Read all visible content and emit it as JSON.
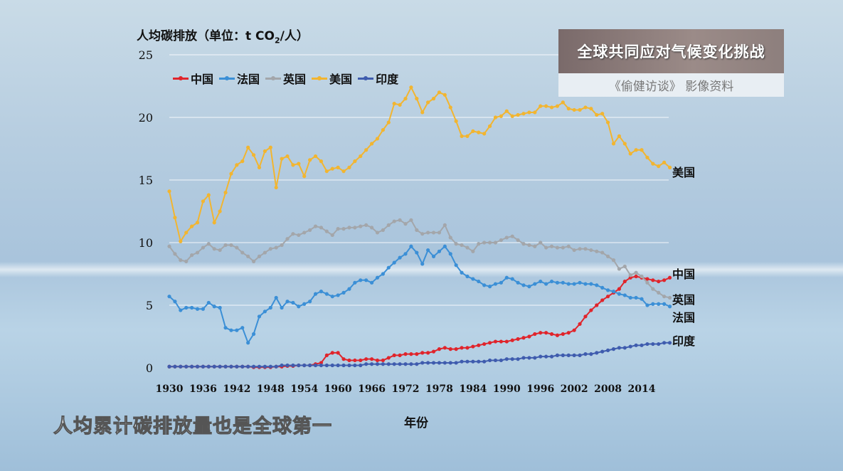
{
  "badge": {
    "title": "全球共同应对气候变化挑战",
    "source": "《偷健访谈》 影像资料"
  },
  "subtitle": "人均累计碳排放量也是全球第一",
  "chart_data": {
    "type": "line",
    "ylabel_prefix": "人均碳排放（单位：t CO",
    "ylabel_sub": "2",
    "ylabel_suffix": "/人）",
    "xlabel": "年份",
    "ylim": [
      0,
      25
    ],
    "yticks": [
      0,
      5,
      10,
      15,
      20,
      25
    ],
    "xticks": [
      1930,
      1936,
      1942,
      1948,
      1954,
      1960,
      1966,
      1972,
      1978,
      1984,
      1990,
      1996,
      2002,
      2008,
      2014
    ],
    "x_start": 1930,
    "x_end": 2018,
    "legend_position": "top-left",
    "grid": true,
    "series": [
      {
        "name": "中国",
        "color": "#e0242b",
        "end_label": "中国",
        "values": [
          0.1,
          0.1,
          0.1,
          0.1,
          0.1,
          0.1,
          0.1,
          0.1,
          0.1,
          0.1,
          0.1,
          0.1,
          0.1,
          0.1,
          0.1,
          0.05,
          0.05,
          0.05,
          0.05,
          0.1,
          0.1,
          0.15,
          0.15,
          0.2,
          0.2,
          0.2,
          0.3,
          0.4,
          1.0,
          1.2,
          1.2,
          0.7,
          0.6,
          0.6,
          0.6,
          0.7,
          0.7,
          0.6,
          0.6,
          0.8,
          1.0,
          1.0,
          1.1,
          1.1,
          1.1,
          1.2,
          1.2,
          1.3,
          1.5,
          1.6,
          1.5,
          1.5,
          1.6,
          1.6,
          1.7,
          1.8,
          1.9,
          2.0,
          2.1,
          2.1,
          2.1,
          2.2,
          2.3,
          2.4,
          2.5,
          2.7,
          2.8,
          2.8,
          2.7,
          2.6,
          2.7,
          2.8,
          3.0,
          3.5,
          4.1,
          4.6,
          5.0,
          5.4,
          5.7,
          6.0,
          6.3,
          6.9,
          7.2,
          7.3,
          7.2,
          7.1,
          7.0,
          6.9,
          7.0,
          7.2
        ]
      },
      {
        "name": "法国",
        "color": "#3b8fd6",
        "end_label": "法国",
        "values": [
          5.7,
          5.3,
          4.6,
          4.8,
          4.8,
          4.7,
          4.7,
          5.2,
          4.9,
          4.8,
          3.2,
          3.0,
          3.0,
          3.2,
          2.0,
          2.7,
          4.1,
          4.5,
          4.8,
          5.6,
          4.8,
          5.3,
          5.2,
          4.9,
          5.1,
          5.3,
          5.9,
          6.1,
          5.9,
          5.7,
          5.8,
          6.0,
          6.3,
          6.8,
          7.0,
          7.0,
          6.8,
          7.2,
          7.5,
          8.0,
          8.4,
          8.8,
          9.1,
          9.7,
          9.2,
          8.3,
          9.4,
          8.9,
          9.3,
          9.7,
          9.1,
          8.2,
          7.6,
          7.3,
          7.1,
          6.9,
          6.6,
          6.5,
          6.7,
          6.8,
          7.2,
          7.1,
          6.8,
          6.6,
          6.5,
          6.7,
          6.9,
          6.7,
          6.9,
          6.8,
          6.8,
          6.7,
          6.7,
          6.8,
          6.7,
          6.7,
          6.6,
          6.4,
          6.2,
          6.1,
          5.9,
          5.8,
          5.6,
          5.6,
          5.5,
          5.0,
          5.1,
          5.1,
          5.1,
          4.9
        ]
      },
      {
        "name": "英国",
        "color": "#a3a6aa",
        "end_label": "英国",
        "values": [
          9.7,
          9.1,
          8.6,
          8.5,
          9.0,
          9.2,
          9.6,
          9.9,
          9.5,
          9.4,
          9.8,
          9.8,
          9.6,
          9.2,
          8.9,
          8.5,
          8.9,
          9.2,
          9.5,
          9.6,
          9.8,
          10.3,
          10.7,
          10.6,
          10.8,
          11.0,
          11.3,
          11.2,
          10.9,
          10.6,
          11.1,
          11.1,
          11.2,
          11.2,
          11.3,
          11.4,
          11.2,
          10.8,
          11.0,
          11.4,
          11.7,
          11.8,
          11.5,
          11.8,
          11.0,
          10.7,
          10.8,
          10.8,
          10.8,
          11.4,
          10.4,
          9.9,
          9.8,
          9.6,
          9.3,
          9.9,
          10.0,
          10.0,
          10.0,
          10.2,
          10.4,
          10.5,
          10.2,
          9.9,
          9.8,
          9.7,
          10.0,
          9.6,
          9.7,
          9.6,
          9.6,
          9.7,
          9.4,
          9.5,
          9.5,
          9.4,
          9.3,
          9.2,
          8.9,
          8.6,
          7.9,
          8.1,
          7.4,
          7.6,
          7.3,
          6.8,
          6.3,
          6.0,
          5.7,
          5.6
        ]
      },
      {
        "name": "美国",
        "color": "#f2b530",
        "end_label": "美国",
        "values": [
          14.1,
          12.0,
          10.1,
          10.8,
          11.3,
          11.6,
          13.3,
          13.8,
          11.6,
          12.5,
          14.0,
          15.5,
          16.2,
          16.5,
          17.6,
          17.0,
          16.0,
          17.3,
          17.6,
          14.4,
          16.7,
          16.9,
          16.2,
          16.3,
          15.3,
          16.6,
          16.9,
          16.5,
          15.7,
          15.9,
          16.0,
          15.7,
          16.0,
          16.5,
          16.9,
          17.4,
          17.9,
          18.3,
          19.0,
          19.6,
          21.1,
          21.0,
          21.5,
          22.4,
          21.5,
          20.4,
          21.2,
          21.5,
          22.0,
          21.8,
          20.8,
          19.7,
          18.5,
          18.5,
          18.9,
          18.8,
          18.7,
          19.3,
          20.0,
          20.1,
          20.5,
          20.1,
          20.2,
          20.3,
          20.4,
          20.4,
          20.9,
          20.9,
          20.8,
          20.9,
          21.2,
          20.7,
          20.6,
          20.6,
          20.8,
          20.7,
          20.2,
          20.3,
          19.6,
          17.9,
          18.5,
          17.9,
          17.1,
          17.4,
          17.4,
          16.8,
          16.3,
          16.1,
          16.4,
          16.0
        ]
      },
      {
        "name": "印度",
        "color": "#3f5cae",
        "end_label": "印度",
        "values": [
          0.1,
          0.1,
          0.1,
          0.1,
          0.1,
          0.1,
          0.1,
          0.1,
          0.1,
          0.1,
          0.1,
          0.1,
          0.1,
          0.1,
          0.1,
          0.1,
          0.1,
          0.1,
          0.1,
          0.1,
          0.2,
          0.2,
          0.2,
          0.2,
          0.2,
          0.2,
          0.2,
          0.2,
          0.2,
          0.2,
          0.2,
          0.2,
          0.2,
          0.2,
          0.2,
          0.3,
          0.3,
          0.3,
          0.3,
          0.3,
          0.3,
          0.3,
          0.3,
          0.3,
          0.3,
          0.4,
          0.4,
          0.4,
          0.4,
          0.4,
          0.4,
          0.4,
          0.5,
          0.5,
          0.5,
          0.5,
          0.5,
          0.6,
          0.6,
          0.6,
          0.7,
          0.7,
          0.7,
          0.8,
          0.8,
          0.8,
          0.9,
          0.9,
          0.9,
          1.0,
          1.0,
          1.0,
          1.0,
          1.0,
          1.1,
          1.1,
          1.2,
          1.3,
          1.4,
          1.5,
          1.6,
          1.6,
          1.7,
          1.8,
          1.8,
          1.9,
          1.9,
          1.9,
          2.0,
          2.0
        ]
      }
    ]
  }
}
